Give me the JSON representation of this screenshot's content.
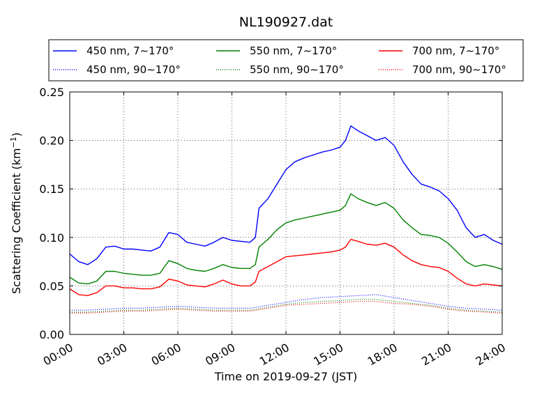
{
  "chart_data": {
    "type": "line",
    "title": "NL190927.dat",
    "xlabel": "Time on 2019-09-27 (JST)",
    "ylabel": "Scattering Coefficient (km",
    "ylabel_sup": "−1",
    "ylabel_close": ")",
    "xlim": [
      0,
      24
    ],
    "ylim": [
      0,
      0.25
    ],
    "x_ticks": [
      0,
      3,
      6,
      9,
      12,
      15,
      18,
      21,
      24
    ],
    "x_tick_labels": [
      "00:00",
      "03:00",
      "06:00",
      "09:00",
      "12:00",
      "15:00",
      "18:00",
      "21:00",
      "24:00"
    ],
    "y_ticks": [
      0,
      0.05,
      0.1,
      0.15,
      0.2,
      0.25
    ],
    "y_tick_labels": [
      "0.00",
      "0.05",
      "0.10",
      "0.15",
      "0.20",
      "0.25"
    ],
    "grid": true,
    "legend_position": "top",
    "series": [
      {
        "name": "450 nm, 7∼170°",
        "color": "#0000ff",
        "style": "solid",
        "x": [
          0,
          0.5,
          1,
          1.5,
          2,
          2.5,
          3,
          3.5,
          4,
          4.5,
          5,
          5.5,
          6,
          6.5,
          7,
          7.5,
          8,
          8.5,
          9,
          9.5,
          10,
          10.3,
          10.5,
          11,
          11.5,
          12,
          12.5,
          13,
          13.5,
          14,
          14.5,
          15,
          15.3,
          15.6,
          16,
          16.5,
          17,
          17.5,
          18,
          18.5,
          19,
          19.5,
          20,
          20.5,
          21,
          21.5,
          22,
          22.5,
          23,
          23.5,
          24
        ],
        "y": [
          0.083,
          0.075,
          0.072,
          0.078,
          0.09,
          0.091,
          0.088,
          0.088,
          0.087,
          0.086,
          0.09,
          0.105,
          0.103,
          0.095,
          0.093,
          0.091,
          0.095,
          0.1,
          0.097,
          0.096,
          0.095,
          0.1,
          0.13,
          0.14,
          0.155,
          0.17,
          0.178,
          0.182,
          0.185,
          0.188,
          0.19,
          0.193,
          0.2,
          0.215,
          0.21,
          0.205,
          0.2,
          0.203,
          0.195,
          0.178,
          0.165,
          0.155,
          0.152,
          0.148,
          0.14,
          0.128,
          0.11,
          0.1,
          0.103,
          0.097,
          0.093
        ]
      },
      {
        "name": "450 nm, 90∼170°",
        "color": "#0000ff",
        "style": "dotted",
        "x": [
          0,
          1,
          2,
          3,
          4,
          5,
          6,
          7,
          8,
          9,
          10,
          11,
          12,
          13,
          14,
          15,
          16,
          17,
          18,
          19,
          20,
          21,
          22,
          23,
          24
        ],
        "y": [
          0.025,
          0.025,
          0.026,
          0.027,
          0.027,
          0.028,
          0.029,
          0.028,
          0.027,
          0.027,
          0.027,
          0.03,
          0.033,
          0.036,
          0.038,
          0.039,
          0.04,
          0.041,
          0.038,
          0.035,
          0.032,
          0.029,
          0.027,
          0.026,
          0.025
        ]
      },
      {
        "name": "550 nm, 7∼170°",
        "color": "#008000",
        "style": "solid",
        "x": [
          0,
          0.5,
          1,
          1.5,
          2,
          2.5,
          3,
          3.5,
          4,
          4.5,
          5,
          5.5,
          6,
          6.5,
          7,
          7.5,
          8,
          8.5,
          9,
          9.5,
          10,
          10.3,
          10.5,
          11,
          11.5,
          12,
          12.5,
          13,
          13.5,
          14,
          14.5,
          15,
          15.3,
          15.6,
          16,
          16.5,
          17,
          17.5,
          18,
          18.5,
          19,
          19.5,
          20,
          20.5,
          21,
          21.5,
          22,
          22.5,
          23,
          23.5,
          24
        ],
        "y": [
          0.059,
          0.053,
          0.052,
          0.055,
          0.065,
          0.065,
          0.063,
          0.062,
          0.061,
          0.061,
          0.063,
          0.076,
          0.073,
          0.068,
          0.066,
          0.065,
          0.068,
          0.072,
          0.069,
          0.068,
          0.068,
          0.072,
          0.09,
          0.098,
          0.108,
          0.115,
          0.118,
          0.12,
          0.122,
          0.124,
          0.126,
          0.128,
          0.133,
          0.145,
          0.14,
          0.136,
          0.133,
          0.136,
          0.13,
          0.118,
          0.11,
          0.103,
          0.102,
          0.1,
          0.094,
          0.085,
          0.075,
          0.07,
          0.072,
          0.07,
          0.067
        ]
      },
      {
        "name": "550 nm, 90∼170°",
        "color": "#008000",
        "style": "dotted",
        "x": [
          0,
          1,
          2,
          3,
          4,
          5,
          6,
          7,
          8,
          9,
          10,
          11,
          12,
          13,
          14,
          15,
          16,
          17,
          18,
          19,
          20,
          21,
          22,
          23,
          24
        ],
        "y": [
          0.023,
          0.023,
          0.024,
          0.025,
          0.025,
          0.026,
          0.027,
          0.026,
          0.025,
          0.025,
          0.025,
          0.028,
          0.031,
          0.033,
          0.034,
          0.035,
          0.036,
          0.036,
          0.034,
          0.032,
          0.03,
          0.027,
          0.025,
          0.024,
          0.023
        ]
      },
      {
        "name": "700 nm, 7∼170°",
        "color": "#ff0000",
        "style": "solid",
        "x": [
          0,
          0.5,
          1,
          1.5,
          2,
          2.5,
          3,
          3.5,
          4,
          4.5,
          5,
          5.5,
          6,
          6.5,
          7,
          7.5,
          8,
          8.5,
          9,
          9.5,
          10,
          10.3,
          10.5,
          11,
          11.5,
          12,
          12.5,
          13,
          13.5,
          14,
          14.5,
          15,
          15.3,
          15.6,
          16,
          16.5,
          17,
          17.5,
          18,
          18.5,
          19,
          19.5,
          20,
          20.5,
          21,
          21.5,
          22,
          22.5,
          23,
          23.5,
          24
        ],
        "y": [
          0.047,
          0.041,
          0.04,
          0.043,
          0.05,
          0.05,
          0.048,
          0.048,
          0.047,
          0.047,
          0.049,
          0.057,
          0.055,
          0.051,
          0.05,
          0.049,
          0.052,
          0.056,
          0.052,
          0.05,
          0.05,
          0.054,
          0.065,
          0.07,
          0.075,
          0.08,
          0.081,
          0.082,
          0.083,
          0.084,
          0.085,
          0.087,
          0.09,
          0.098,
          0.096,
          0.093,
          0.092,
          0.094,
          0.09,
          0.082,
          0.076,
          0.072,
          0.07,
          0.069,
          0.065,
          0.058,
          0.052,
          0.05,
          0.052,
          0.051,
          0.05
        ]
      },
      {
        "name": "700 nm, 90∼170°",
        "color": "#ff0000",
        "style": "dotted",
        "x": [
          0,
          1,
          2,
          3,
          4,
          5,
          6,
          7,
          8,
          9,
          10,
          11,
          12,
          13,
          14,
          15,
          16,
          17,
          18,
          19,
          20,
          21,
          22,
          23,
          24
        ],
        "y": [
          0.022,
          0.022,
          0.023,
          0.024,
          0.024,
          0.025,
          0.026,
          0.025,
          0.024,
          0.024,
          0.024,
          0.027,
          0.03,
          0.031,
          0.032,
          0.033,
          0.034,
          0.034,
          0.032,
          0.031,
          0.029,
          0.026,
          0.024,
          0.023,
          0.022
        ]
      }
    ]
  }
}
